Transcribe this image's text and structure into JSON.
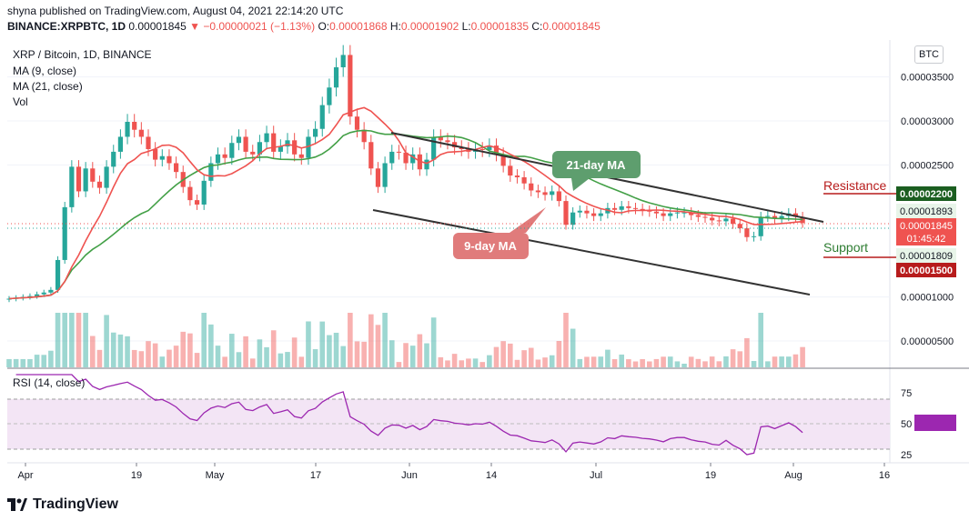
{
  "header": {
    "line1": "shyna published on TradingView.com, August 04, 2021 22:14:20 UTC",
    "symbol": "BINANCE:XRPBTC, 1D",
    "last": "0.00001845",
    "change": "▼ −0.00000021 (−1.13%)",
    "o_label": "O:",
    "o_value": "0.00001868",
    "h_label": "H:",
    "h_value": "0.00001902",
    "l_label": "L:",
    "l_value": "0.00001835",
    "c_label": "C:",
    "c_value": "0.00001845"
  },
  "legend": {
    "title": "XRP / Bitcoin, 1D, BINANCE",
    "ma9": "MA (9, close)",
    "ma21": "MA (21, close)",
    "vol": "Vol",
    "rsi": "RSI (14, close)"
  },
  "currency_badge": "BTC",
  "annotations": {
    "ma21_label": "21-day MA",
    "ma9_label": "9-day MA",
    "resistance": "Resistance",
    "support": "Support"
  },
  "price_tags": {
    "resistance_level": "0.00002200",
    "upper": "0.00001893",
    "current": "0.00001845",
    "countdown": "01:45:42",
    "lower": "0.00001809",
    "support_level": "0.00001500"
  },
  "colors": {
    "up": "#26a69a",
    "down": "#ef5350",
    "ma9": "#ef5350",
    "ma21": "#43a047",
    "rsi": "#9c27b0",
    "rsi_band": "#f3e5f5",
    "resistance": "#b71c1c",
    "support": "#2e7d32"
  },
  "footer": {
    "brand": "TradingView"
  },
  "chart_data": [
    {
      "type": "candlestick",
      "title": "XRP / Bitcoin, 1D, BINANCE",
      "y_ticks": [
        "0.00003500",
        "0.00003000",
        "0.00002500",
        "0.00001000",
        "0.00000500"
      ],
      "x_ticks": [
        "Apr",
        "19",
        "May",
        "17",
        "Jun",
        "14",
        "Jul",
        "19",
        "Aug",
        "16"
      ],
      "ylim": [
        2e-06,
        3.92e-05
      ],
      "close": [
        9.8e-06,
        9.9e-06,
        1e-05,
        1.01e-05,
        1.03e-05,
        1.05e-05,
        1.08e-05,
        1.42e-05,
        2.02e-05,
        2.48e-05,
        2.2e-05,
        2.46e-05,
        2.31e-05,
        2.24e-05,
        2.48e-05,
        2.65e-05,
        2.82e-05,
        2.99e-05,
        2.9e-05,
        2.82e-05,
        2.68e-05,
        2.56e-05,
        2.6e-05,
        2.52e-05,
        2.42e-05,
        2.25e-05,
        2.1e-05,
        2.05e-05,
        2.32e-05,
        2.52e-05,
        2.62e-05,
        2.58e-05,
        2.75e-05,
        2.82e-05,
        2.65e-05,
        2.62e-05,
        2.76e-05,
        2.86e-05,
        2.65e-05,
        2.71e-05,
        2.78e-05,
        2.62e-05,
        2.58e-05,
        2.82e-05,
        2.91e-05,
        3.18e-05,
        3.38e-05,
        3.61e-05,
        3.75e-05,
        3.05e-05,
        2.9e-05,
        2.76e-05,
        2.46e-05,
        2.25e-05,
        2.52e-05,
        2.65e-05,
        2.64e-05,
        2.52e-05,
        2.62e-05,
        2.45e-05,
        2.56e-05,
        2.82e-05,
        2.78e-05,
        2.76e-05,
        2.7e-05,
        2.68e-05,
        2.65e-05,
        2.68e-05,
        2.67e-05,
        2.72e-05,
        2.62e-05,
        2.49e-05,
        2.38e-05,
        2.36e-05,
        2.29e-05,
        2.21e-05,
        2.19e-05,
        2.16e-05,
        2.2e-05,
        2.09e-05,
        1.82e-05,
        1.96e-05,
        1.98e-05,
        1.95e-05,
        1.92e-05,
        1.95e-05,
        2.01e-05,
        1.99e-05,
        2.03e-05,
        2.01e-05,
        2e-05,
        1.98e-05,
        1.97e-05,
        1.95e-05,
        1.92e-05,
        1.95e-05,
        1.96e-05,
        1.96e-05,
        1.93e-05,
        1.91e-05,
        1.9e-05,
        1.87e-05,
        1.86e-05,
        1.89e-05,
        1.83e-05,
        1.78e-05,
        1.68e-05,
        1.69e-05,
        1.91e-05,
        1.92e-05,
        1.89e-05,
        1.92e-05,
        1.95e-05,
        1.91e-05,
        1.84e-05
      ],
      "rsi": {
        "levels": [
          75,
          50,
          25
        ],
        "upper_band": 70,
        "lower_band": 30,
        "last_approx": 50
      },
      "indicators": [
        "MA (9, close)",
        "MA (21, close)",
        "Vol",
        "RSI (14, close)"
      ]
    }
  ]
}
